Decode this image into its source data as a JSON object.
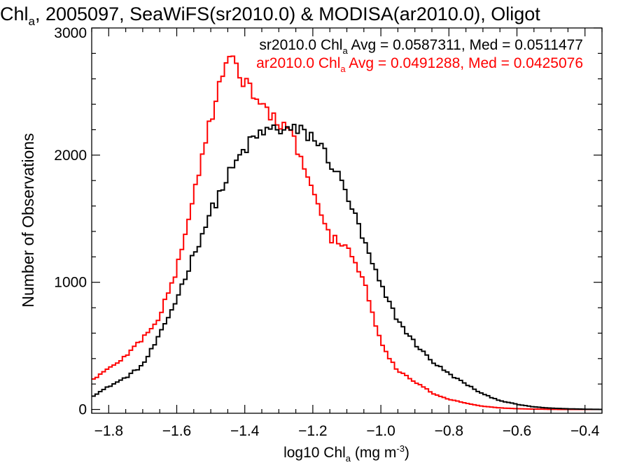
{
  "chart_data": {
    "type": "line",
    "title": {
      "prefix": "Chl",
      "sub": "a",
      "suffix": ", 2005097, SeaWiFS(sr2010.0) & MODISA(ar2010.0), Oligot"
    },
    "xlabel": {
      "prefix": "log10 Chl",
      "sub": "a",
      "mid": " (mg m",
      "sup": "-3",
      "suffix": ")"
    },
    "ylabel": "Number of Observations",
    "xlim": [
      -1.85,
      -0.35
    ],
    "ylim": [
      -30,
      3000
    ],
    "xticks": [
      -1.8,
      -1.6,
      -1.4,
      -1.2,
      -1.0,
      -0.8,
      -0.6,
      -0.4
    ],
    "xtick_labels": [
      "−1.8",
      "−1.6",
      "−1.4",
      "−1.2",
      "−1.0",
      "−0.8",
      "−0.6",
      "−0.4"
    ],
    "yticks": [
      0,
      1000,
      2000,
      3000
    ],
    "ytick_labels": [
      "0",
      "1000",
      "2000",
      "3000"
    ],
    "grid": false,
    "step": 0.01,
    "annotations": [
      {
        "prefix": "sr2010.0 Chl",
        "sub": "a",
        "suffix": " Avg = 0.0587311, Med = 0.0511477",
        "color": "#000000"
      },
      {
        "prefix": "ar2010.0 Chl",
        "sub": "a",
        "suffix": " Avg = 0.0491288, Med = 0.0425076",
        "color": "#ff0000"
      }
    ],
    "series": [
      {
        "color": "#000000",
        "x": [
          -1.85,
          -1.8,
          -1.75,
          -1.7,
          -1.65,
          -1.6,
          -1.55,
          -1.5,
          -1.45,
          -1.4,
          -1.35,
          -1.3,
          -1.25,
          -1.2,
          -1.15,
          -1.1,
          -1.05,
          -1.0,
          -0.95,
          -0.9,
          -0.85,
          -0.8,
          -0.75,
          -0.7,
          -0.65,
          -0.6,
          -0.55,
          -0.5,
          -0.45,
          -0.4,
          -0.35
        ],
        "y": [
          100,
          180,
          250,
          350,
          580,
          870,
          1220,
          1550,
          1830,
          2050,
          2180,
          2210,
          2190,
          2150,
          1960,
          1700,
          1320,
          970,
          700,
          520,
          380,
          280,
          200,
          120,
          70,
          40,
          20,
          10,
          5,
          2,
          0
        ]
      },
      {
        "color": "#ff0000",
        "x": [
          -1.85,
          -1.8,
          -1.75,
          -1.7,
          -1.65,
          -1.6,
          -1.55,
          -1.5,
          -1.45,
          -1.4,
          -1.35,
          -1.3,
          -1.25,
          -1.2,
          -1.15,
          -1.1,
          -1.05,
          -1.0,
          -0.95,
          -0.9,
          -0.85,
          -0.8,
          -0.75,
          -0.7,
          -0.65,
          -0.6,
          -0.55,
          -0.5,
          -0.45,
          -0.4,
          -0.35
        ],
        "y": [
          230,
          320,
          420,
          560,
          730,
          1100,
          1680,
          2300,
          2750,
          2600,
          2380,
          2250,
          2100,
          1700,
          1350,
          1300,
          1000,
          520,
          300,
          220,
          130,
          80,
          50,
          25,
          12,
          6,
          3,
          1,
          0,
          0,
          0
        ]
      }
    ]
  }
}
